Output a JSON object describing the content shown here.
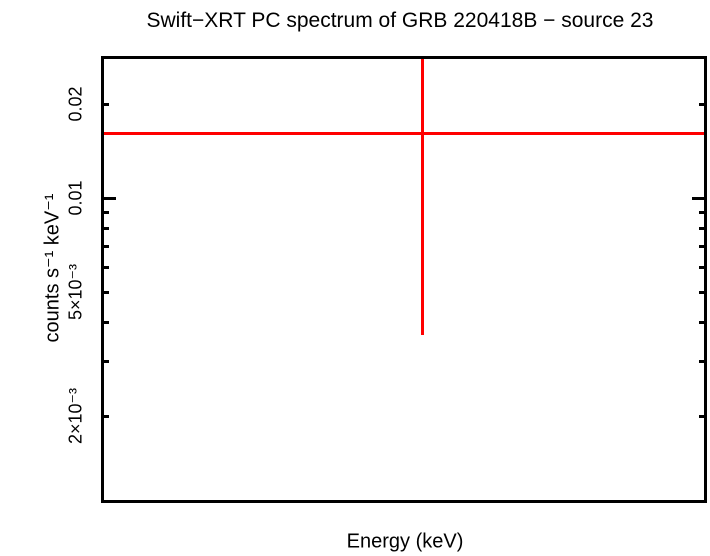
{
  "page": {
    "background_color": "#ffffff",
    "frame_color": "#000000"
  },
  "chart_data": {
    "type": "scatter",
    "title": "Swift−XRT PC spectrum of GRB 220418B − source 23",
    "xlabel": "Energy (keV)",
    "ylabel": "counts s⁻¹ keV⁻¹",
    "x_scale": "log",
    "y_scale": "log",
    "grid": false,
    "legend": null,
    "x_ticks": [],
    "x_tick_note": "no tick marks or tick labels on the energy axis",
    "y_ticks": [
      {
        "label": "0.02",
        "value": 0.02
      },
      {
        "label": "0.01",
        "value": 0.01
      },
      {
        "label": "5×10⁻³",
        "value": 0.005
      },
      {
        "label": "2×10⁻³",
        "value": 0.002
      }
    ],
    "y_minor_tick_values": [
      0.009,
      0.008,
      0.007,
      0.006,
      0.004,
      0.003
    ],
    "y_decade_tick_values": [
      0.01
    ],
    "ylim": [
      0.00108,
      0.0279
    ],
    "series": [
      {
        "name": "source 23 spectrum (single bin)",
        "color": "#ff0000",
        "points": [
          {
            "y_counts_s_kev": 0.0161,
            "y_err_lo_value": 0.00365,
            "y_err_hi": "clipped at top of plot frame",
            "x_center_frac": 0.53,
            "x_err": "horizontal bar spans full energy axis, clipped at both frame edges"
          }
        ]
      }
    ]
  }
}
